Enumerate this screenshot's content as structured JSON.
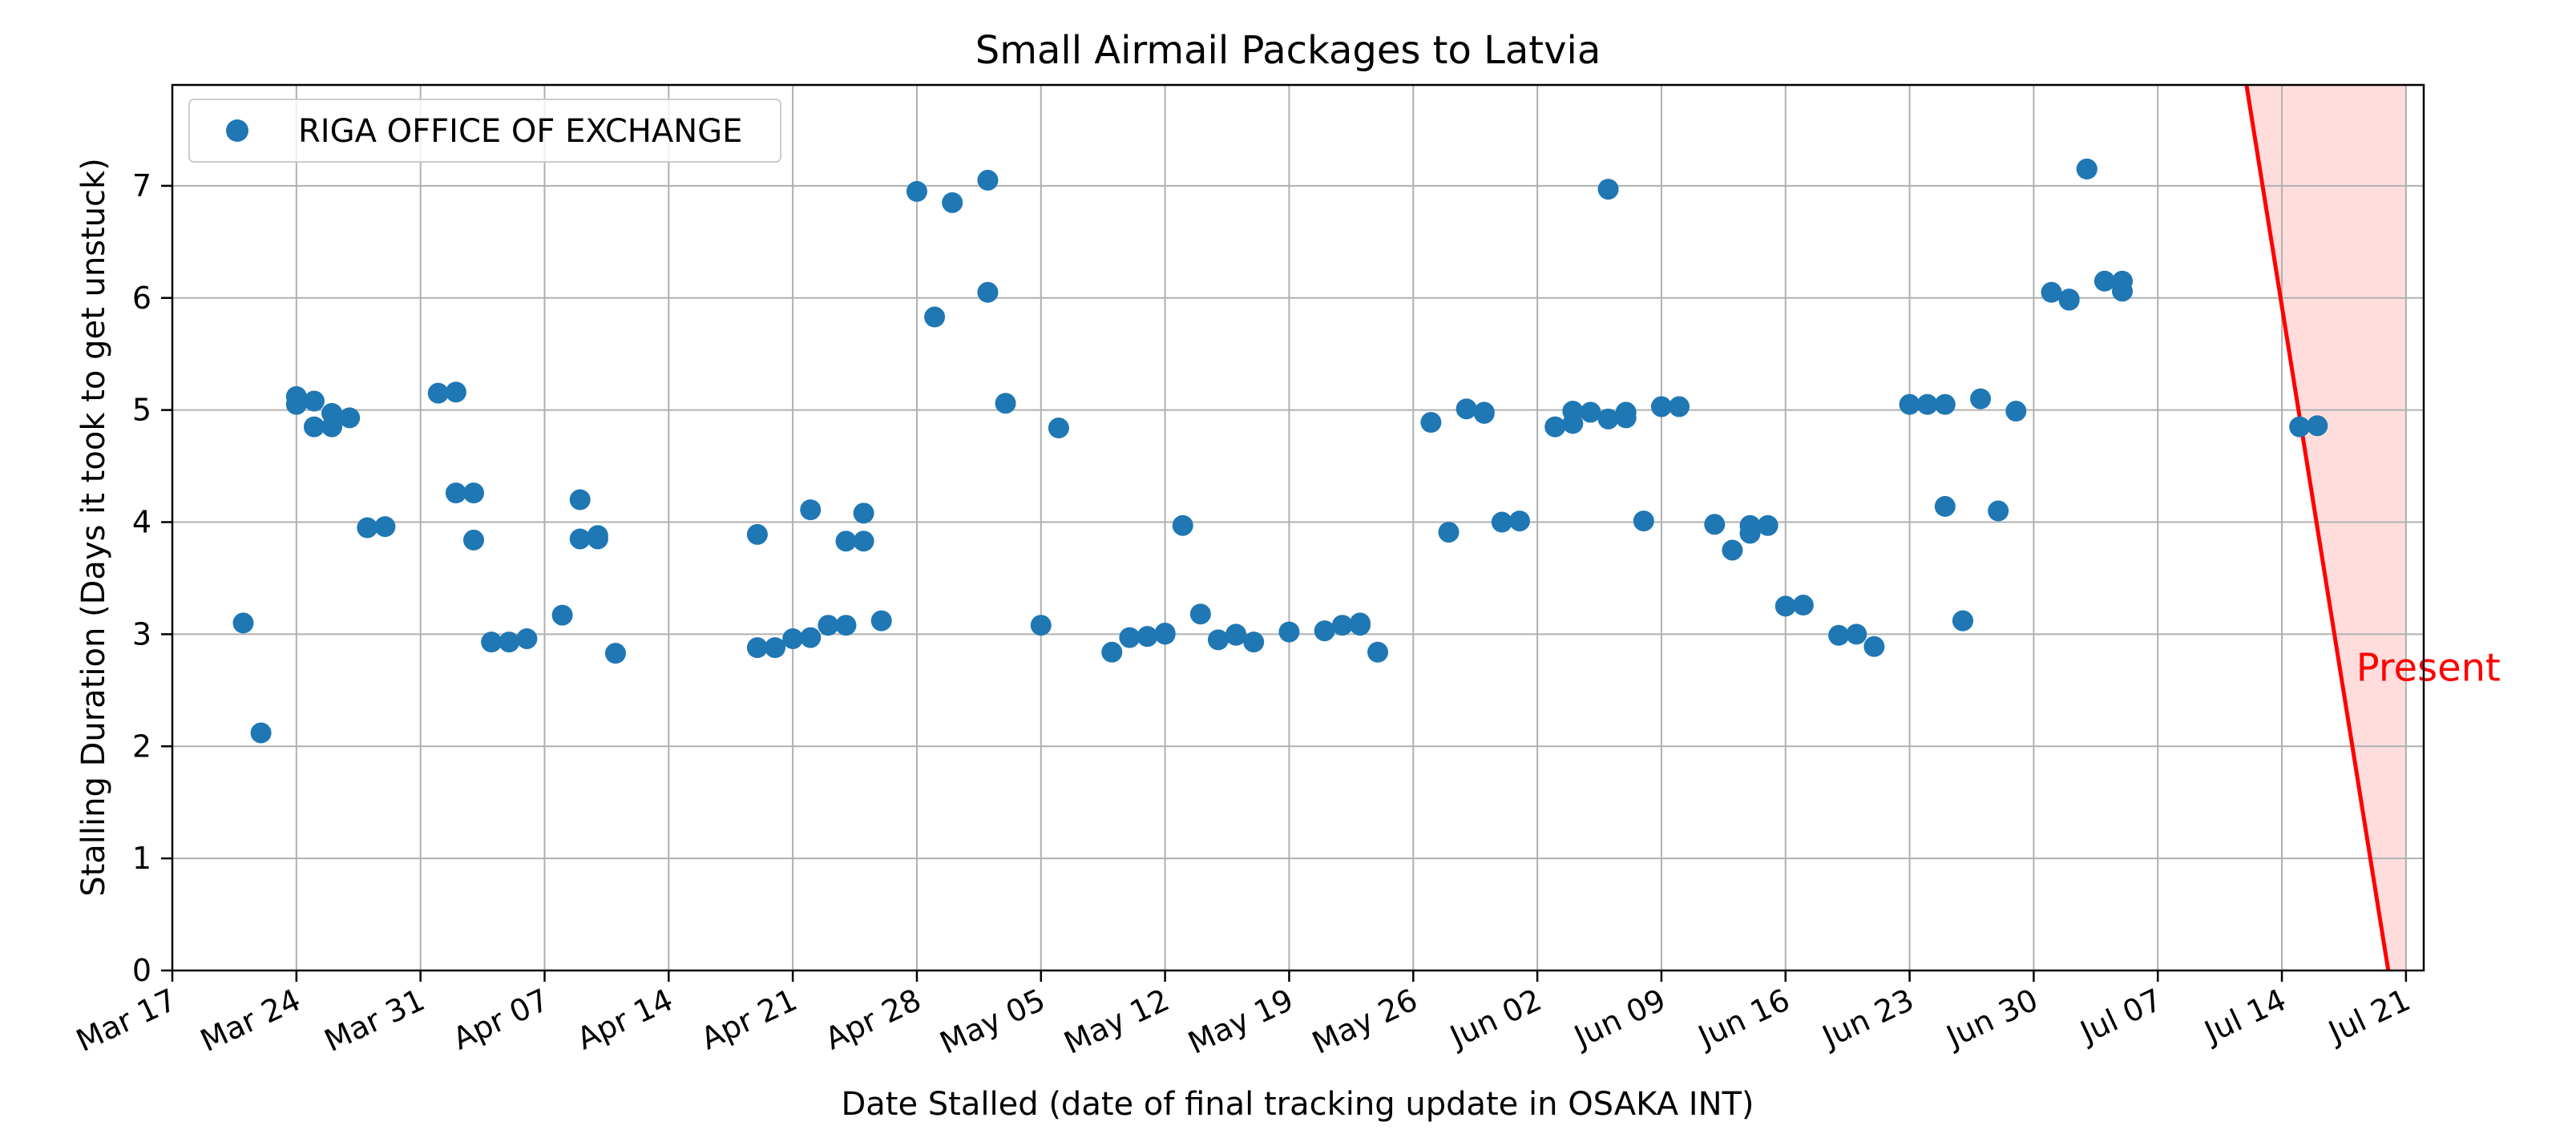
{
  "chart_data": {
    "type": "scatter",
    "title": "Small Airmail Packages to Latvia",
    "xlabel": "Date Stalled (date of final tracking update in OSAKA INT)",
    "ylabel": "Stalling Duration (Days it took to get unstuck)",
    "xlim": [
      "2023-03-17",
      "2023-07-22"
    ],
    "ylim": [
      0,
      7.9
    ],
    "grid": true,
    "x_tick_labels": [
      "Mar 17",
      "Mar 24",
      "Mar 31",
      "Apr 07",
      "Apr 14",
      "Apr 21",
      "Apr 28",
      "May 05",
      "May 12",
      "May 19",
      "May 26",
      "Jun 02",
      "Jun 09",
      "Jun 16",
      "Jun 23",
      "Jun 30",
      "Jul 07",
      "Jul 14",
      "Jul 21"
    ],
    "x_tick_dates": [
      "2023-03-17",
      "2023-03-24",
      "2023-03-31",
      "2023-04-07",
      "2023-04-14",
      "2023-04-21",
      "2023-04-28",
      "2023-05-05",
      "2023-05-12",
      "2023-05-19",
      "2023-05-26",
      "2023-06-02",
      "2023-06-09",
      "2023-06-16",
      "2023-06-23",
      "2023-06-30",
      "2023-07-07",
      "2023-07-14",
      "2023-07-21"
    ],
    "y_ticks": [
      0,
      1,
      2,
      3,
      4,
      5,
      6,
      7
    ],
    "legend": {
      "placement": "top-left"
    },
    "series": [
      {
        "name": "RIGA OFFICE OF EXCHANGE",
        "color": "#1f77b4",
        "points": [
          {
            "x": "2023-03-21",
            "y": 3.1
          },
          {
            "x": "2023-03-22",
            "y": 2.12
          },
          {
            "x": "2023-03-24",
            "y": 5.05
          },
          {
            "x": "2023-03-24",
            "y": 5.12
          },
          {
            "x": "2023-03-25",
            "y": 5.08
          },
          {
            "x": "2023-03-25",
            "y": 4.85
          },
          {
            "x": "2023-03-26",
            "y": 4.85
          },
          {
            "x": "2023-03-26",
            "y": 4.97
          },
          {
            "x": "2023-03-27",
            "y": 4.93
          },
          {
            "x": "2023-03-28",
            "y": 3.95
          },
          {
            "x": "2023-03-29",
            "y": 3.96
          },
          {
            "x": "2023-04-01",
            "y": 5.15
          },
          {
            "x": "2023-04-02",
            "y": 5.16
          },
          {
            "x": "2023-04-02",
            "y": 4.26
          },
          {
            "x": "2023-04-03",
            "y": 4.26
          },
          {
            "x": "2023-04-03",
            "y": 3.84
          },
          {
            "x": "2023-04-04",
            "y": 2.93
          },
          {
            "x": "2023-04-05",
            "y": 2.93
          },
          {
            "x": "2023-04-06",
            "y": 2.96
          },
          {
            "x": "2023-04-08",
            "y": 3.17
          },
          {
            "x": "2023-04-09",
            "y": 4.2
          },
          {
            "x": "2023-04-09",
            "y": 3.85
          },
          {
            "x": "2023-04-10",
            "y": 3.88
          },
          {
            "x": "2023-04-10",
            "y": 3.85
          },
          {
            "x": "2023-04-11",
            "y": 2.83
          },
          {
            "x": "2023-04-19",
            "y": 3.89
          },
          {
            "x": "2023-04-19",
            "y": 2.88
          },
          {
            "x": "2023-04-20",
            "y": 2.88
          },
          {
            "x": "2023-04-21",
            "y": 2.96
          },
          {
            "x": "2023-04-22",
            "y": 2.97
          },
          {
            "x": "2023-04-22",
            "y": 4.11
          },
          {
            "x": "2023-04-23",
            "y": 3.08
          },
          {
            "x": "2023-04-24",
            "y": 3.08
          },
          {
            "x": "2023-04-24",
            "y": 3.83
          },
          {
            "x": "2023-04-25",
            "y": 3.83
          },
          {
            "x": "2023-04-25",
            "y": 4.08
          },
          {
            "x": "2023-04-26",
            "y": 3.12
          },
          {
            "x": "2023-04-28",
            "y": 6.95
          },
          {
            "x": "2023-04-29",
            "y": 5.83
          },
          {
            "x": "2023-04-30",
            "y": 6.85
          },
          {
            "x": "2023-05-02",
            "y": 7.05
          },
          {
            "x": "2023-05-02",
            "y": 6.05
          },
          {
            "x": "2023-05-03",
            "y": 5.06
          },
          {
            "x": "2023-05-05",
            "y": 3.08
          },
          {
            "x": "2023-05-06",
            "y": 4.84
          },
          {
            "x": "2023-05-09",
            "y": 2.84
          },
          {
            "x": "2023-05-10",
            "y": 2.97
          },
          {
            "x": "2023-05-11",
            "y": 2.98
          },
          {
            "x": "2023-05-12",
            "y": 3.0
          },
          {
            "x": "2023-05-12",
            "y": 3.01
          },
          {
            "x": "2023-05-13",
            "y": 3.97
          },
          {
            "x": "2023-05-14",
            "y": 3.18
          },
          {
            "x": "2023-05-15",
            "y": 2.95
          },
          {
            "x": "2023-05-16",
            "y": 3.0
          },
          {
            "x": "2023-05-16",
            "y": 2.99
          },
          {
            "x": "2023-05-17",
            "y": 2.93
          },
          {
            "x": "2023-05-19",
            "y": 3.02
          },
          {
            "x": "2023-05-21",
            "y": 3.03
          },
          {
            "x": "2023-05-22",
            "y": 3.08
          },
          {
            "x": "2023-05-23",
            "y": 3.08
          },
          {
            "x": "2023-05-23",
            "y": 3.1
          },
          {
            "x": "2023-05-24",
            "y": 2.84
          },
          {
            "x": "2023-05-27",
            "y": 4.89
          },
          {
            "x": "2023-05-28",
            "y": 3.91
          },
          {
            "x": "2023-05-29",
            "y": 5.01
          },
          {
            "x": "2023-05-30",
            "y": 4.98
          },
          {
            "x": "2023-05-30",
            "y": 4.97
          },
          {
            "x": "2023-05-31",
            "y": 4.0
          },
          {
            "x": "2023-06-01",
            "y": 4.01
          },
          {
            "x": "2023-06-03",
            "y": 4.85
          },
          {
            "x": "2023-06-04",
            "y": 4.88
          },
          {
            "x": "2023-06-04",
            "y": 4.99
          },
          {
            "x": "2023-06-05",
            "y": 4.98
          },
          {
            "x": "2023-06-06",
            "y": 6.97
          },
          {
            "x": "2023-06-06",
            "y": 4.92
          },
          {
            "x": "2023-06-07",
            "y": 4.93
          },
          {
            "x": "2023-06-07",
            "y": 4.98
          },
          {
            "x": "2023-06-08",
            "y": 4.01
          },
          {
            "x": "2023-06-09",
            "y": 5.03
          },
          {
            "x": "2023-06-10",
            "y": 5.03
          },
          {
            "x": "2023-06-12",
            "y": 3.98
          },
          {
            "x": "2023-06-13",
            "y": 3.75
          },
          {
            "x": "2023-06-14",
            "y": 3.9
          },
          {
            "x": "2023-06-14",
            "y": 3.97
          },
          {
            "x": "2023-06-15",
            "y": 3.97
          },
          {
            "x": "2023-06-16",
            "y": 3.25
          },
          {
            "x": "2023-06-17",
            "y": 3.26
          },
          {
            "x": "2023-06-19",
            "y": 2.99
          },
          {
            "x": "2023-06-20",
            "y": 3.0
          },
          {
            "x": "2023-06-21",
            "y": 2.89
          },
          {
            "x": "2023-06-23",
            "y": 5.05
          },
          {
            "x": "2023-06-24",
            "y": 5.05
          },
          {
            "x": "2023-06-25",
            "y": 5.05
          },
          {
            "x": "2023-06-25",
            "y": 4.14
          },
          {
            "x": "2023-06-26",
            "y": 3.12
          },
          {
            "x": "2023-06-26",
            "y": 3.12
          },
          {
            "x": "2023-06-27",
            "y": 5.1
          },
          {
            "x": "2023-06-28",
            "y": 4.1
          },
          {
            "x": "2023-06-29",
            "y": 4.99
          },
          {
            "x": "2023-07-01",
            "y": 6.05
          },
          {
            "x": "2023-07-02",
            "y": 5.99
          },
          {
            "x": "2023-07-02",
            "y": 5.98
          },
          {
            "x": "2023-07-03",
            "y": 7.15
          },
          {
            "x": "2023-07-03",
            "y": 7.15
          },
          {
            "x": "2023-07-04",
            "y": 6.15
          },
          {
            "x": "2023-07-05",
            "y": 6.15
          },
          {
            "x": "2023-07-05",
            "y": 6.06
          },
          {
            "x": "2023-07-15",
            "y": 4.85
          },
          {
            "x": "2023-07-16",
            "y": 4.86
          }
        ]
      }
    ],
    "annotations": [
      {
        "text": "Present",
        "color": "#ff0000",
        "line_start": {
          "x": "2023-07-12",
          "y": 7.9
        },
        "line_end": {
          "x": "2023-07-20",
          "y": 0
        },
        "shaded_region_end": "2023-07-21",
        "shade_color": "#ffdddd",
        "text_anchor": {
          "x": "2023-07-20",
          "y": 2.3
        }
      }
    ]
  }
}
